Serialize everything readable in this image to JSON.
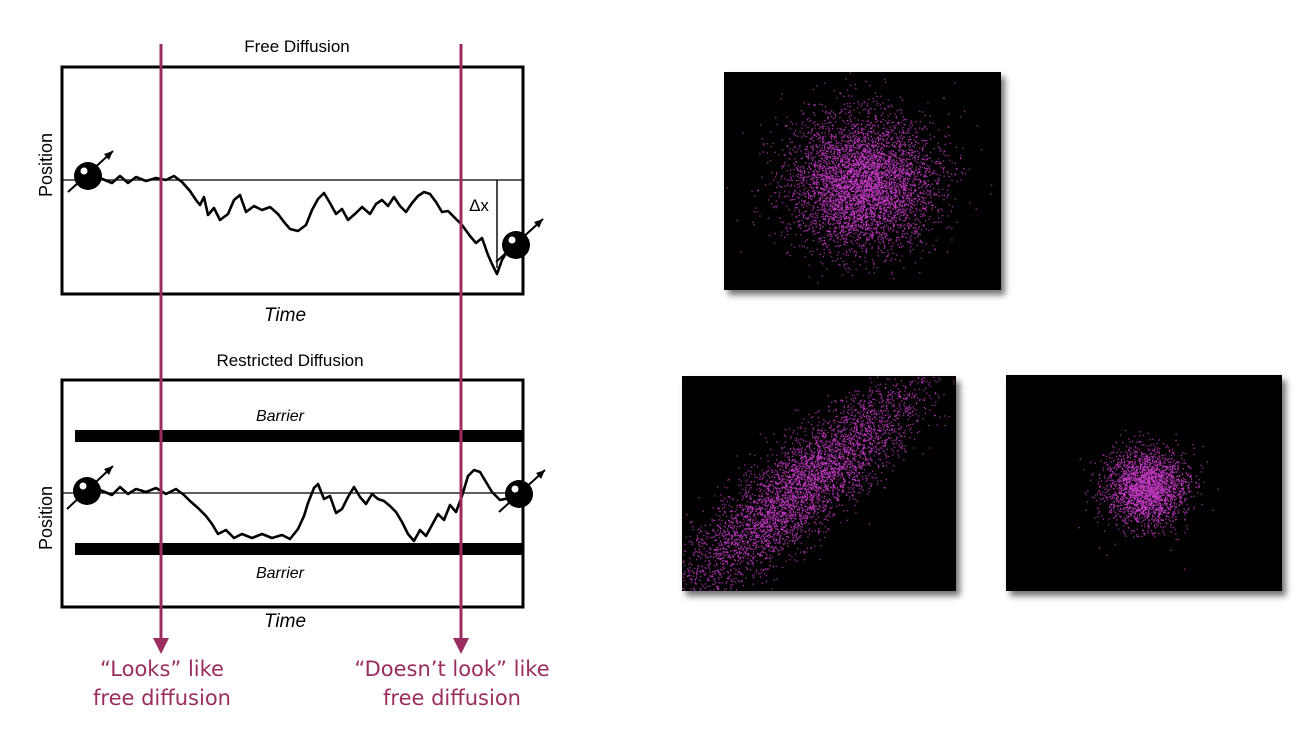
{
  "free_panel": {
    "title": "Free Diffusion",
    "y_label": "Position",
    "x_label": "Time",
    "delta_label": "Δx"
  },
  "restricted_panel": {
    "title": "Restricted Diffusion",
    "y_label": "Position",
    "x_label": "Time",
    "barrier_top_label": "Barrier",
    "barrier_bottom_label": "Barrier"
  },
  "markers": {
    "left": {
      "line1": "“Looks” like",
      "line2": "free diffusion"
    },
    "right": {
      "line1": "“Doesn’t look” like",
      "line2": "free diffusion"
    }
  },
  "colors": {
    "marker": "#9b2d5e",
    "scatter_dot": "#d23cd2",
    "scatter_bg": "#000000"
  },
  "scatter_plots": [
    {
      "name": "isotropic-wide",
      "shape": "round",
      "spread": "wide"
    },
    {
      "name": "anisotropic-elongated",
      "shape": "elongated-diagonal",
      "spread": "wide"
    },
    {
      "name": "isotropic-compact",
      "shape": "round",
      "spread": "narrow"
    }
  ]
}
